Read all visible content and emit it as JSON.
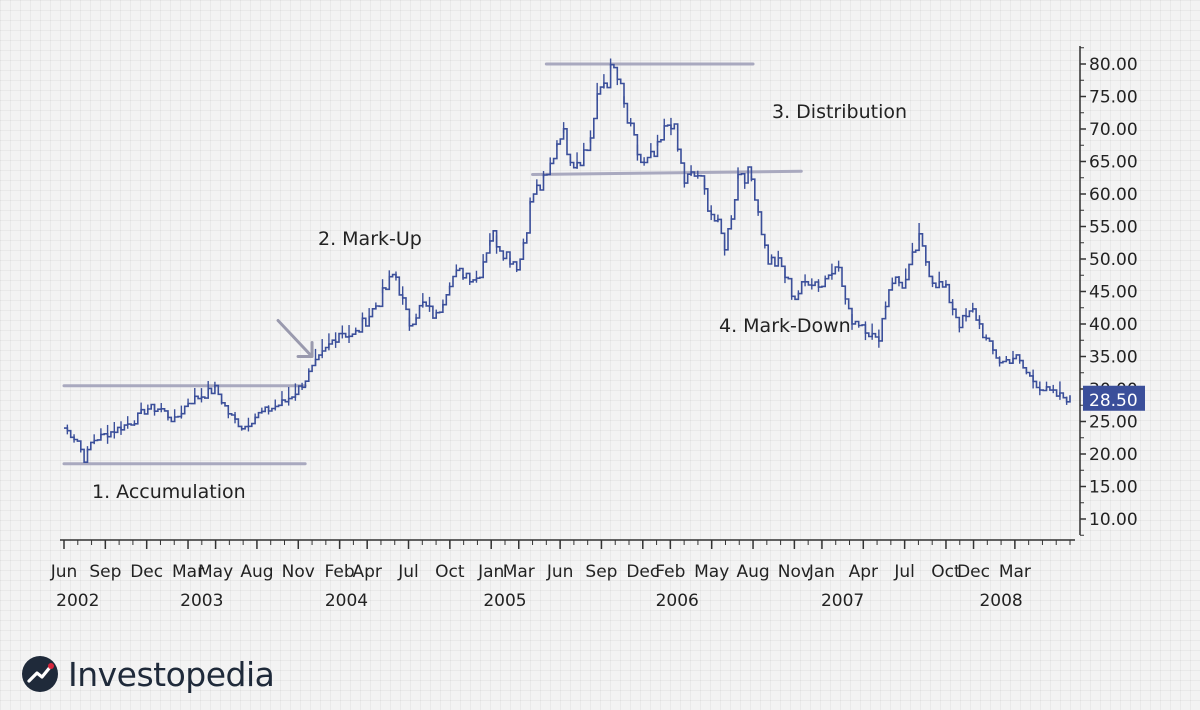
{
  "brand": {
    "name": "Investopedia"
  },
  "chart_data": {
    "type": "line",
    "title": "",
    "xlabel": "",
    "ylabel": "",
    "ylim": [
      5,
      85
    ],
    "yticks": [
      "80.00",
      "75.00",
      "70.00",
      "65.00",
      "60.00",
      "55.00",
      "50.00",
      "45.00",
      "40.00",
      "35.00",
      "30.00",
      "25.00",
      "20.00",
      "15.00",
      "10.00"
    ],
    "ytick_values": [
      80,
      75,
      70,
      65,
      60,
      55,
      50,
      45,
      40,
      35,
      30,
      25,
      20,
      15,
      10
    ],
    "current_price": "28.50",
    "current_price_value": 28.5,
    "months": [
      "Jun",
      "Sep",
      "Dec",
      "Mar",
      "May",
      "Aug",
      "Nov",
      "Feb",
      "Apr",
      "Jul",
      "Oct",
      "Jan",
      "Mar",
      "Jun",
      "Sep",
      "Dec",
      "Feb",
      "May",
      "Aug",
      "Nov",
      "Jan",
      "Apr",
      "Jul",
      "Oct",
      "Dec",
      "Mar"
    ],
    "month_index": [
      0,
      3,
      6,
      9,
      11,
      14,
      17,
      20,
      22,
      25,
      28,
      31,
      33,
      36,
      39,
      42,
      44,
      47,
      50,
      53,
      55,
      58,
      61,
      64,
      66,
      69
    ],
    "years": [
      "2002",
      "2003",
      "2004",
      "2005",
      "2006",
      "2007",
      "2008"
    ],
    "year_index": [
      1,
      10,
      20.5,
      32,
      44.5,
      56.5,
      68
    ],
    "x_range_months": [
      0,
      73
    ],
    "series": [
      {
        "name": "Price",
        "x_months": [
          0,
          1,
          1.5,
          2,
          3,
          4,
          5,
          6,
          7,
          8,
          9,
          10,
          11,
          12,
          13,
          14,
          15,
          16,
          17,
          18,
          19,
          20,
          21,
          22,
          23,
          24,
          25,
          26,
          27,
          28,
          29,
          30,
          31,
          32,
          33,
          34,
          35,
          36,
          37,
          38,
          39,
          40,
          41,
          42,
          43,
          44,
          45,
          46,
          47,
          48,
          49,
          50,
          51,
          52,
          53,
          54,
          55,
          56,
          57,
          58,
          59,
          60,
          61,
          62,
          63,
          64,
          65,
          66,
          67,
          68,
          69,
          70,
          71,
          72,
          73
        ],
        "values": [
          24,
          22,
          19,
          22,
          23,
          24,
          25,
          27,
          27,
          25,
          28,
          29,
          30,
          26,
          24,
          26,
          27,
          28,
          30,
          33,
          36,
          39,
          38,
          41,
          44,
          48,
          40,
          43,
          41,
          47,
          48,
          47,
          54,
          51,
          49,
          60,
          62,
          70,
          65,
          67,
          77,
          79,
          70,
          64,
          66,
          72,
          62,
          63,
          57,
          52,
          64,
          62,
          50,
          49,
          44,
          47,
          46,
          50,
          41,
          40,
          37,
          47,
          46,
          53,
          47,
          45,
          40,
          42,
          37,
          34,
          35,
          32,
          30,
          29,
          28.5
        ]
      }
    ],
    "annotations": [
      {
        "label": "1. Accumulation"
      },
      {
        "label": "2. Mark-Up"
      },
      {
        "label": "3. Distribution"
      },
      {
        "label": "4. Mark-Down"
      }
    ],
    "reference_lines": [
      {
        "name": "accumulation-resistance",
        "x0": 0,
        "x1": 17.5,
        "y0": 30.5,
        "y1": 30.5
      },
      {
        "name": "accumulation-support",
        "x0": 0,
        "x1": 17.5,
        "y0": 18.5,
        "y1": 18.5
      },
      {
        "name": "distribution-top",
        "x0": 35,
        "x1": 50,
        "y0": 80,
        "y1": 80
      },
      {
        "name": "distribution-support",
        "x0": 34,
        "x1": 53.5,
        "y0": 63,
        "y1": 63.5
      }
    ],
    "arrow": {
      "name": "markup-arrow",
      "x_month": 18,
      "y_value": 35
    }
  }
}
